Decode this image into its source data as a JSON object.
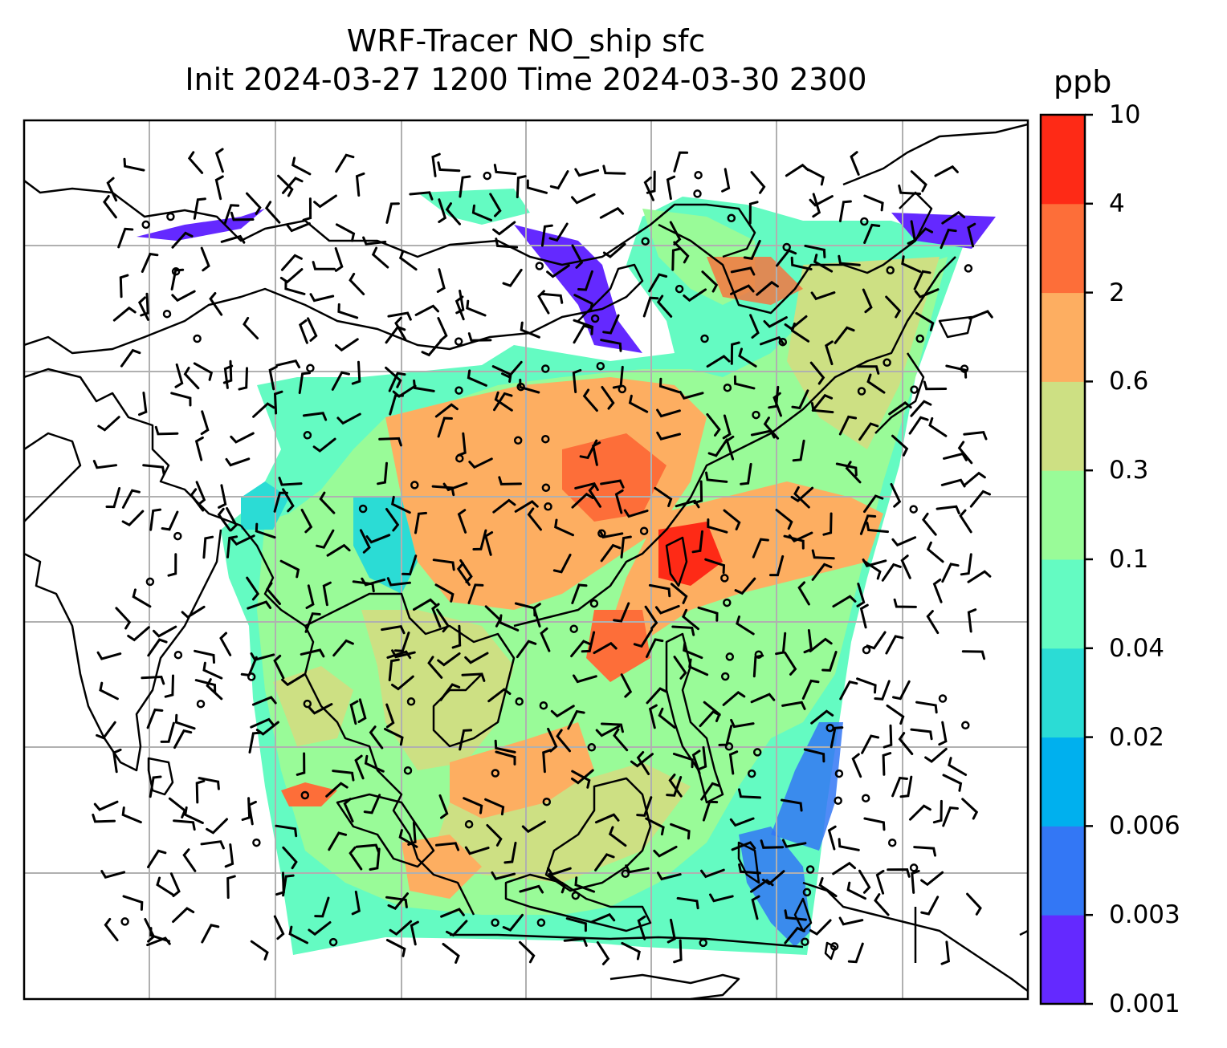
{
  "title_line1": "WRF-Tracer NO_ship sfc",
  "title_line2": "Init 2024-03-27 1200 Time 2024-03-30 2300",
  "colorbar": {
    "unit": "ppb",
    "levels": [
      "0.001",
      "0.003",
      "0.006",
      "0.02",
      "0.04",
      "0.1",
      "0.3",
      "0.6",
      "2",
      "4",
      "10"
    ],
    "colors": [
      "#6429ff",
      "#3377f5",
      "#00b0ee",
      "#2bdcd5",
      "#64fbc2",
      "#99fb98",
      "#cde083",
      "#fdae61",
      "#fd6e39",
      "#fe2a16"
    ]
  },
  "map": {
    "grid": "on",
    "layers": [
      "coastlines",
      "filled-concentration-field",
      "wind-barbs",
      "calm-wind-circles"
    ]
  }
}
